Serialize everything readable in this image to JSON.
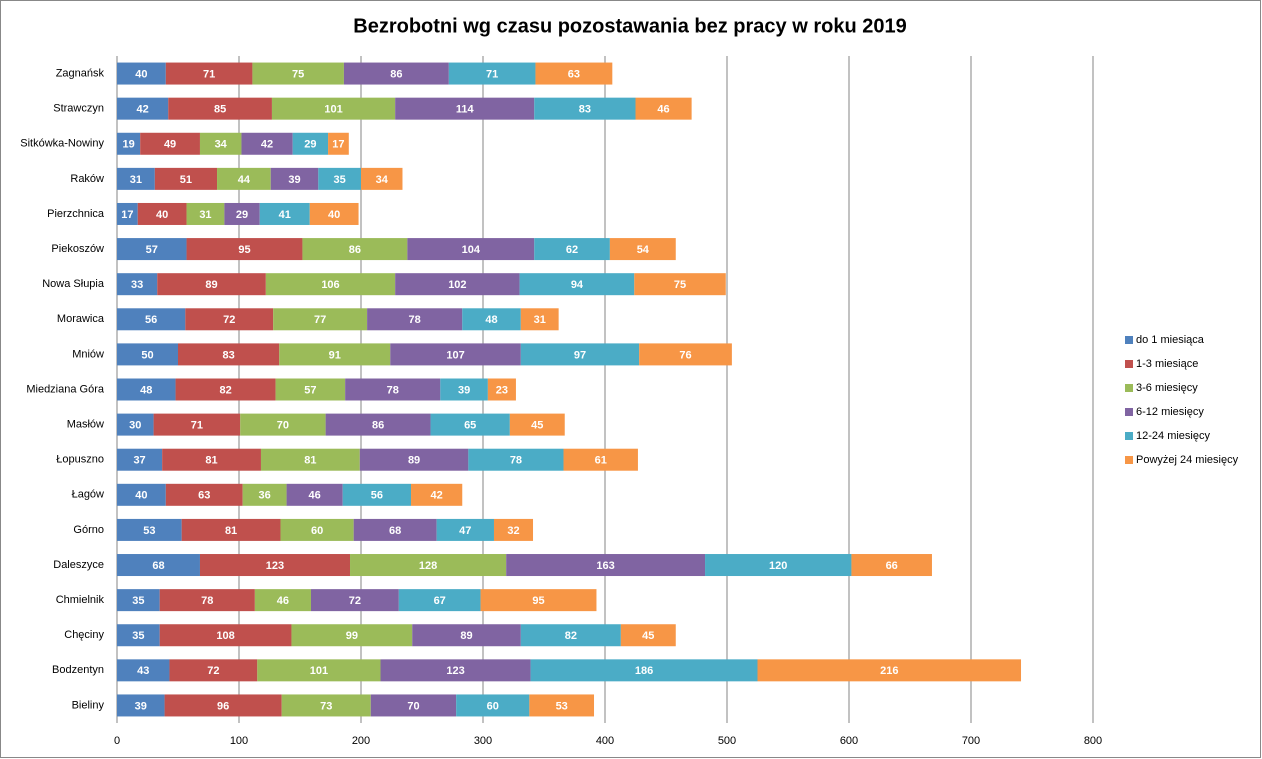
{
  "chart_data": {
    "type": "stacked-bar-horizontal",
    "title": "Bezrobotni wg czasu pozostawania bez pracy w roku 2019",
    "categories": [
      "Zagnańsk",
      "Strawczyn",
      "Sitkówka-Nowiny",
      "Raków",
      "Pierzchnica",
      "Piekoszów",
      "Nowa Słupia",
      "Morawica",
      "Mniów",
      "Miedziana Góra",
      "Masłów",
      "Łopuszno",
      "Łagów",
      "Górno",
      "Daleszyce",
      "Chmielnik",
      "Chęciny",
      "Bodzentyn",
      "Bieliny"
    ],
    "series": [
      {
        "name": "do 1 miesiąca",
        "color": "#4f81bd",
        "values": [
          40,
          42,
          19,
          31,
          17,
          57,
          33,
          56,
          50,
          48,
          30,
          37,
          40,
          53,
          68,
          35,
          35,
          43,
          39
        ]
      },
      {
        "name": "1-3 miesiące",
        "color": "#c0504d",
        "values": [
          71,
          85,
          49,
          51,
          40,
          95,
          89,
          72,
          83,
          82,
          71,
          81,
          63,
          81,
          123,
          78,
          108,
          72,
          96
        ]
      },
      {
        "name": "3-6 miesięcy",
        "color": "#9bbb59",
        "values": [
          75,
          101,
          34,
          44,
          31,
          86,
          106,
          77,
          91,
          57,
          70,
          81,
          36,
          60,
          128,
          46,
          99,
          101,
          73
        ]
      },
      {
        "name": "6-12 miesięcy",
        "color": "#8064a2",
        "values": [
          86,
          114,
          42,
          39,
          29,
          104,
          102,
          78,
          107,
          78,
          86,
          89,
          46,
          68,
          163,
          72,
          89,
          123,
          70
        ]
      },
      {
        "name": "12-24 miesięcy",
        "color": "#4bacc6",
        "values": [
          71,
          83,
          29,
          35,
          41,
          62,
          94,
          48,
          97,
          39,
          65,
          78,
          56,
          47,
          120,
          67,
          82,
          186,
          60
        ]
      },
      {
        "name": "Powyżej 24 miesięcy",
        "color": "#f79646",
        "values": [
          63,
          46,
          17,
          34,
          40,
          54,
          75,
          31,
          76,
          23,
          45,
          61,
          42,
          32,
          66,
          95,
          45,
          216,
          53
        ]
      }
    ],
    "xlim": [
      0,
      800
    ],
    "xticks": [
      0,
      100,
      200,
      300,
      400,
      500,
      600,
      700,
      800
    ],
    "grid": true,
    "legend": "right"
  }
}
